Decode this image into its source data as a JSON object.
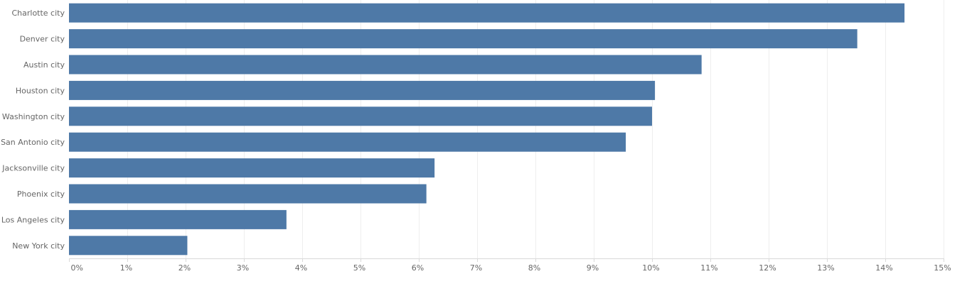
{
  "chart_data": {
    "type": "bar",
    "orientation": "horizontal",
    "categories": [
      "Charlotte city",
      "Denver city",
      "Austin city",
      "Houston city",
      "Washington city",
      "San Antonio city",
      "Jacksonville city",
      "Phoenix city",
      "Los Angeles city",
      "New York city"
    ],
    "values": [
      14.33,
      13.52,
      10.85,
      10.05,
      10.0,
      9.55,
      6.27,
      6.13,
      3.73,
      2.03
    ],
    "xlim": [
      0,
      15
    ],
    "x_ticks": [
      0,
      1,
      2,
      3,
      4,
      5,
      6,
      7,
      8,
      9,
      10,
      11,
      12,
      13,
      14,
      15
    ],
    "x_tick_labels": [
      "0%",
      "1%",
      "2%",
      "3%",
      "4%",
      "5%",
      "6%",
      "7%",
      "8%",
      "9%",
      "10%",
      "11%",
      "12%",
      "13%",
      "14%",
      "15%"
    ],
    "grid": true,
    "title": "",
    "xlabel": "",
    "ylabel": "",
    "bar_color": "#4e79a7"
  }
}
